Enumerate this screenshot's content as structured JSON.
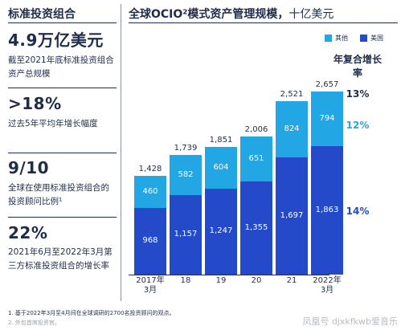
{
  "left_panel": {
    "title": "标准投资组合",
    "stats": [
      {
        "value": "4.9万亿美元",
        "desc": "截至2021年底标准投资组合资产总规模"
      },
      {
        "value": ">18%",
        "desc": "过去5年平均年增长幅度"
      },
      {
        "value": "9/10",
        "desc": "全球在使用标准投资组合的投资顾问比例¹"
      },
      {
        "value": "22%",
        "desc": "2021年6月至2022年3月第三方标准投资组合的增长率"
      }
    ]
  },
  "chart_title": {
    "main": "全球OCIO²模式资产管理规模，",
    "unit": "十亿美元"
  },
  "legend": {
    "other": "其他",
    "us": "美国"
  },
  "cagr_header": "年复合增长率",
  "colors": {
    "us": "#2449c9",
    "other": "#22a6e4",
    "text": "#1f2d4a",
    "cagr_total": "#1f2d4a"
  },
  "chart_data": {
    "type": "bar",
    "stacked": true,
    "categories": [
      {
        "year": "2017年",
        "sub": "3月"
      },
      {
        "year": "18",
        "sub": ""
      },
      {
        "year": "19",
        "sub": ""
      },
      {
        "year": "20",
        "sub": ""
      },
      {
        "year": "21",
        "sub": ""
      },
      {
        "year": "2022年",
        "sub": "3月"
      }
    ],
    "series": [
      {
        "name": "美国",
        "color": "#2449c9",
        "values": [
          968,
          1157,
          1247,
          1355,
          1697,
          1863
        ],
        "cagr": "14%"
      },
      {
        "name": "其他",
        "color": "#22a6e4",
        "values": [
          460,
          582,
          604,
          651,
          824,
          794
        ],
        "cagr": "12%"
      }
    ],
    "totals": [
      "1,428",
      "1,739",
      "1,851",
      "2,006",
      "2,521",
      "2,657"
    ],
    "value_labels": {
      "us": [
        "968",
        "1,157",
        "1,247",
        "1,355",
        "1,697",
        "1,863"
      ],
      "other": [
        "460",
        "582",
        "604",
        "651",
        "824",
        "794"
      ]
    },
    "total_cagr": "13%",
    "ylim": [
      0,
      2657
    ]
  },
  "footnotes": [
    "1. 基于2022年3月至4月间在全球调研的2700名投资顾问的观点。",
    "2. 外包首席投资官。"
  ],
  "watermark": "凤凰号 djxkfkwb爱音乐"
}
